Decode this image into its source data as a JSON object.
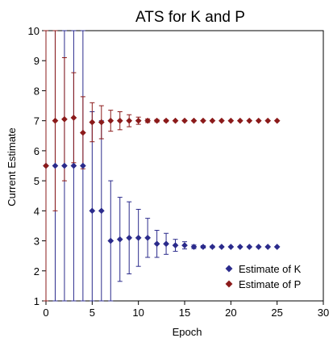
{
  "chart_data": {
    "type": "scatter",
    "title": "ATS for K and P",
    "xlabel": "Epoch",
    "ylabel": "Current Estimate",
    "xlim": [
      0,
      30
    ],
    "ylim": [
      1,
      10
    ],
    "xticks": [
      0,
      5,
      10,
      15,
      20,
      25,
      30
    ],
    "yticks": [
      1,
      2,
      3,
      4,
      5,
      6,
      7,
      8,
      9,
      10
    ],
    "grid": false,
    "legend_position": "bottom-right",
    "series": [
      {
        "name": "Estimate of K",
        "color": "#2b2b8c",
        "marker": "diamond",
        "points": [
          {
            "x": 0,
            "y": 5.5,
            "err": 5.0
          },
          {
            "x": 1,
            "y": 5.5,
            "err": 5.0
          },
          {
            "x": 2,
            "y": 5.5,
            "err": 5.0
          },
          {
            "x": 3,
            "y": 5.5,
            "err": 5.0
          },
          {
            "x": 4,
            "y": 5.5,
            "err": 5.0
          },
          {
            "x": 5,
            "y": 4.0,
            "err": 3.3
          },
          {
            "x": 6,
            "y": 4.0,
            "err": 3.0
          },
          {
            "x": 7,
            "y": 3.0,
            "err": 2.0
          },
          {
            "x": 8,
            "y": 3.05,
            "err": 1.4
          },
          {
            "x": 9,
            "y": 3.1,
            "err": 1.2
          },
          {
            "x": 10,
            "y": 3.1,
            "err": 0.95
          },
          {
            "x": 11,
            "y": 3.1,
            "err": 0.65
          },
          {
            "x": 12,
            "y": 2.9,
            "err": 0.45
          },
          {
            "x": 13,
            "y": 2.9,
            "err": 0.35
          },
          {
            "x": 14,
            "y": 2.85,
            "err": 0.2
          },
          {
            "x": 15,
            "y": 2.85,
            "err": 0.12
          },
          {
            "x": 16,
            "y": 2.8,
            "err": 0.06
          },
          {
            "x": 17,
            "y": 2.8,
            "err": 0.04
          },
          {
            "x": 18,
            "y": 2.8,
            "err": 0.03
          },
          {
            "x": 19,
            "y": 2.8,
            "err": 0
          },
          {
            "x": 20,
            "y": 2.8,
            "err": 0
          },
          {
            "x": 21,
            "y": 2.8,
            "err": 0
          },
          {
            "x": 22,
            "y": 2.8,
            "err": 0
          },
          {
            "x": 23,
            "y": 2.8,
            "err": 0
          },
          {
            "x": 24,
            "y": 2.8,
            "err": 0
          },
          {
            "x": 25,
            "y": 2.8,
            "err": 0
          }
        ]
      },
      {
        "name": "Estimate of P",
        "color": "#8b1a1a",
        "marker": "diamond",
        "points": [
          {
            "x": 0,
            "y": 5.5,
            "err": 5.0
          },
          {
            "x": 1,
            "y": 7.0,
            "err": 3.0
          },
          {
            "x": 2,
            "y": 7.05,
            "err": 2.05
          },
          {
            "x": 3,
            "y": 7.1,
            "err": 1.5
          },
          {
            "x": 4,
            "y": 6.6,
            "err": 1.2
          },
          {
            "x": 5,
            "y": 6.95,
            "err": 0.65
          },
          {
            "x": 6,
            "y": 6.95,
            "err": 0.55
          },
          {
            "x": 7,
            "y": 7.0,
            "err": 0.35
          },
          {
            "x": 8,
            "y": 7.0,
            "err": 0.3
          },
          {
            "x": 9,
            "y": 7.0,
            "err": 0.2
          },
          {
            "x": 10,
            "y": 7.0,
            "err": 0.12
          },
          {
            "x": 11,
            "y": 7.0,
            "err": 0.06
          },
          {
            "x": 12,
            "y": 7.0,
            "err": 0.04
          },
          {
            "x": 13,
            "y": 7.0,
            "err": 0.03
          },
          {
            "x": 14,
            "y": 7.0,
            "err": 0
          },
          {
            "x": 15,
            "y": 7.0,
            "err": 0
          },
          {
            "x": 16,
            "y": 7.0,
            "err": 0
          },
          {
            "x": 17,
            "y": 7.0,
            "err": 0
          },
          {
            "x": 18,
            "y": 7.0,
            "err": 0
          },
          {
            "x": 19,
            "y": 7.0,
            "err": 0
          },
          {
            "x": 20,
            "y": 7.0,
            "err": 0
          },
          {
            "x": 21,
            "y": 7.0,
            "err": 0
          },
          {
            "x": 22,
            "y": 7.0,
            "err": 0
          },
          {
            "x": 23,
            "y": 7.0,
            "err": 0
          },
          {
            "x": 24,
            "y": 7.0,
            "err": 0
          },
          {
            "x": 25,
            "y": 7.0,
            "err": 0
          }
        ]
      }
    ]
  }
}
